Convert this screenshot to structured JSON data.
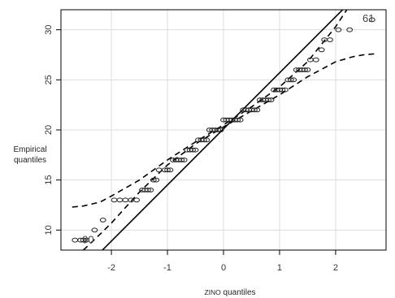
{
  "chart_data": {
    "type": "scatter",
    "title": "",
    "xlabel_prefix": "ZINO",
    "xlabel_suffix": " quantiles",
    "ylabel_line1": "Empirical",
    "ylabel_line2": "quantiles",
    "xlim": [
      -2.9,
      2.9
    ],
    "ylim": [
      8.0,
      32.0
    ],
    "x_ticks": [
      -2,
      -1,
      0,
      1,
      2
    ],
    "y_ticks": [
      10,
      15,
      20,
      25,
      30
    ],
    "x_tick_labels": [
      "-2",
      "-1",
      "0",
      "1",
      "2"
    ],
    "y_tick_labels": [
      "10",
      "15",
      "20",
      "25",
      "30"
    ],
    "grid": true,
    "reference_line": {
      "slope": 5.6,
      "intercept": 20.1
    },
    "envelope_lower": {
      "x": [
        -2.5,
        -2.2,
        -2.0,
        -1.5,
        -1.0,
        -0.5,
        0.0,
        0.5,
        1.0,
        1.5,
        2.0,
        2.3,
        2.5,
        2.7
      ],
      "y": [
        8.0,
        9.6,
        10.7,
        13.8,
        16.5,
        18.6,
        20.3,
        21.9,
        23.5,
        25.3,
        26.8,
        27.3,
        27.5,
        27.6
      ]
    },
    "envelope_upper": {
      "x": [
        -2.7,
        -2.5,
        -2.2,
        -2.0,
        -1.5,
        -1.0,
        -0.5,
        0.0,
        0.5,
        1.0,
        1.5,
        2.0,
        2.2
      ],
      "y": [
        12.3,
        12.4,
        12.8,
        13.4,
        15.0,
        17.0,
        18.8,
        20.5,
        22.3,
        24.3,
        26.8,
        30.3,
        32.0
      ]
    },
    "points": {
      "x": [
        -2.65,
        -2.55,
        -2.5,
        -2.45,
        -2.3,
        -2.15,
        -1.95,
        -1.85,
        -1.75,
        -1.65,
        -1.55,
        -1.45,
        -1.4,
        -1.35,
        -1.3,
        -1.25,
        -1.2,
        -1.15,
        -1.05,
        -1.0,
        -0.95,
        -0.9,
        -0.85,
        -0.8,
        -0.75,
        -0.7,
        -0.65,
        -0.6,
        -0.55,
        -0.5,
        -0.45,
        -0.4,
        -0.35,
        -0.3,
        -0.25,
        -0.2,
        -0.15,
        -0.1,
        -0.05,
        0.0,
        0.05,
        0.1,
        0.15,
        0.2,
        0.25,
        0.3,
        0.35,
        0.4,
        0.45,
        0.5,
        0.55,
        0.6,
        0.65,
        0.7,
        0.75,
        0.8,
        0.85,
        0.9,
        0.95,
        1.0,
        1.05,
        1.1,
        1.15,
        1.2,
        1.25,
        1.3,
        1.35,
        1.4,
        1.45,
        1.5,
        1.55,
        1.65,
        1.75,
        1.8,
        1.9,
        2.05,
        2.25,
        2.65
      ],
      "y": [
        9,
        9,
        9,
        9,
        10,
        11,
        13,
        13,
        13,
        13,
        13,
        14,
        14,
        14,
        14,
        15,
        15,
        16,
        16,
        16,
        16,
        17,
        17,
        17,
        17,
        17,
        18,
        18,
        18,
        18,
        19,
        19,
        19,
        19,
        20,
        20,
        20,
        20,
        20,
        21,
        21,
        21,
        21,
        21,
        21,
        21,
        22,
        22,
        22,
        22,
        22,
        22,
        23,
        23,
        23,
        23,
        23,
        24,
        24,
        24,
        24,
        24,
        25,
        25,
        25,
        26,
        26,
        26,
        26,
        26,
        27,
        27,
        28,
        29,
        29,
        30,
        30,
        31
      ]
    },
    "annotations": [
      {
        "text": "90",
        "x": -2.52,
        "y": 9.0
      },
      {
        "text": "61",
        "x": 2.48,
        "y": 31.1
      }
    ]
  }
}
